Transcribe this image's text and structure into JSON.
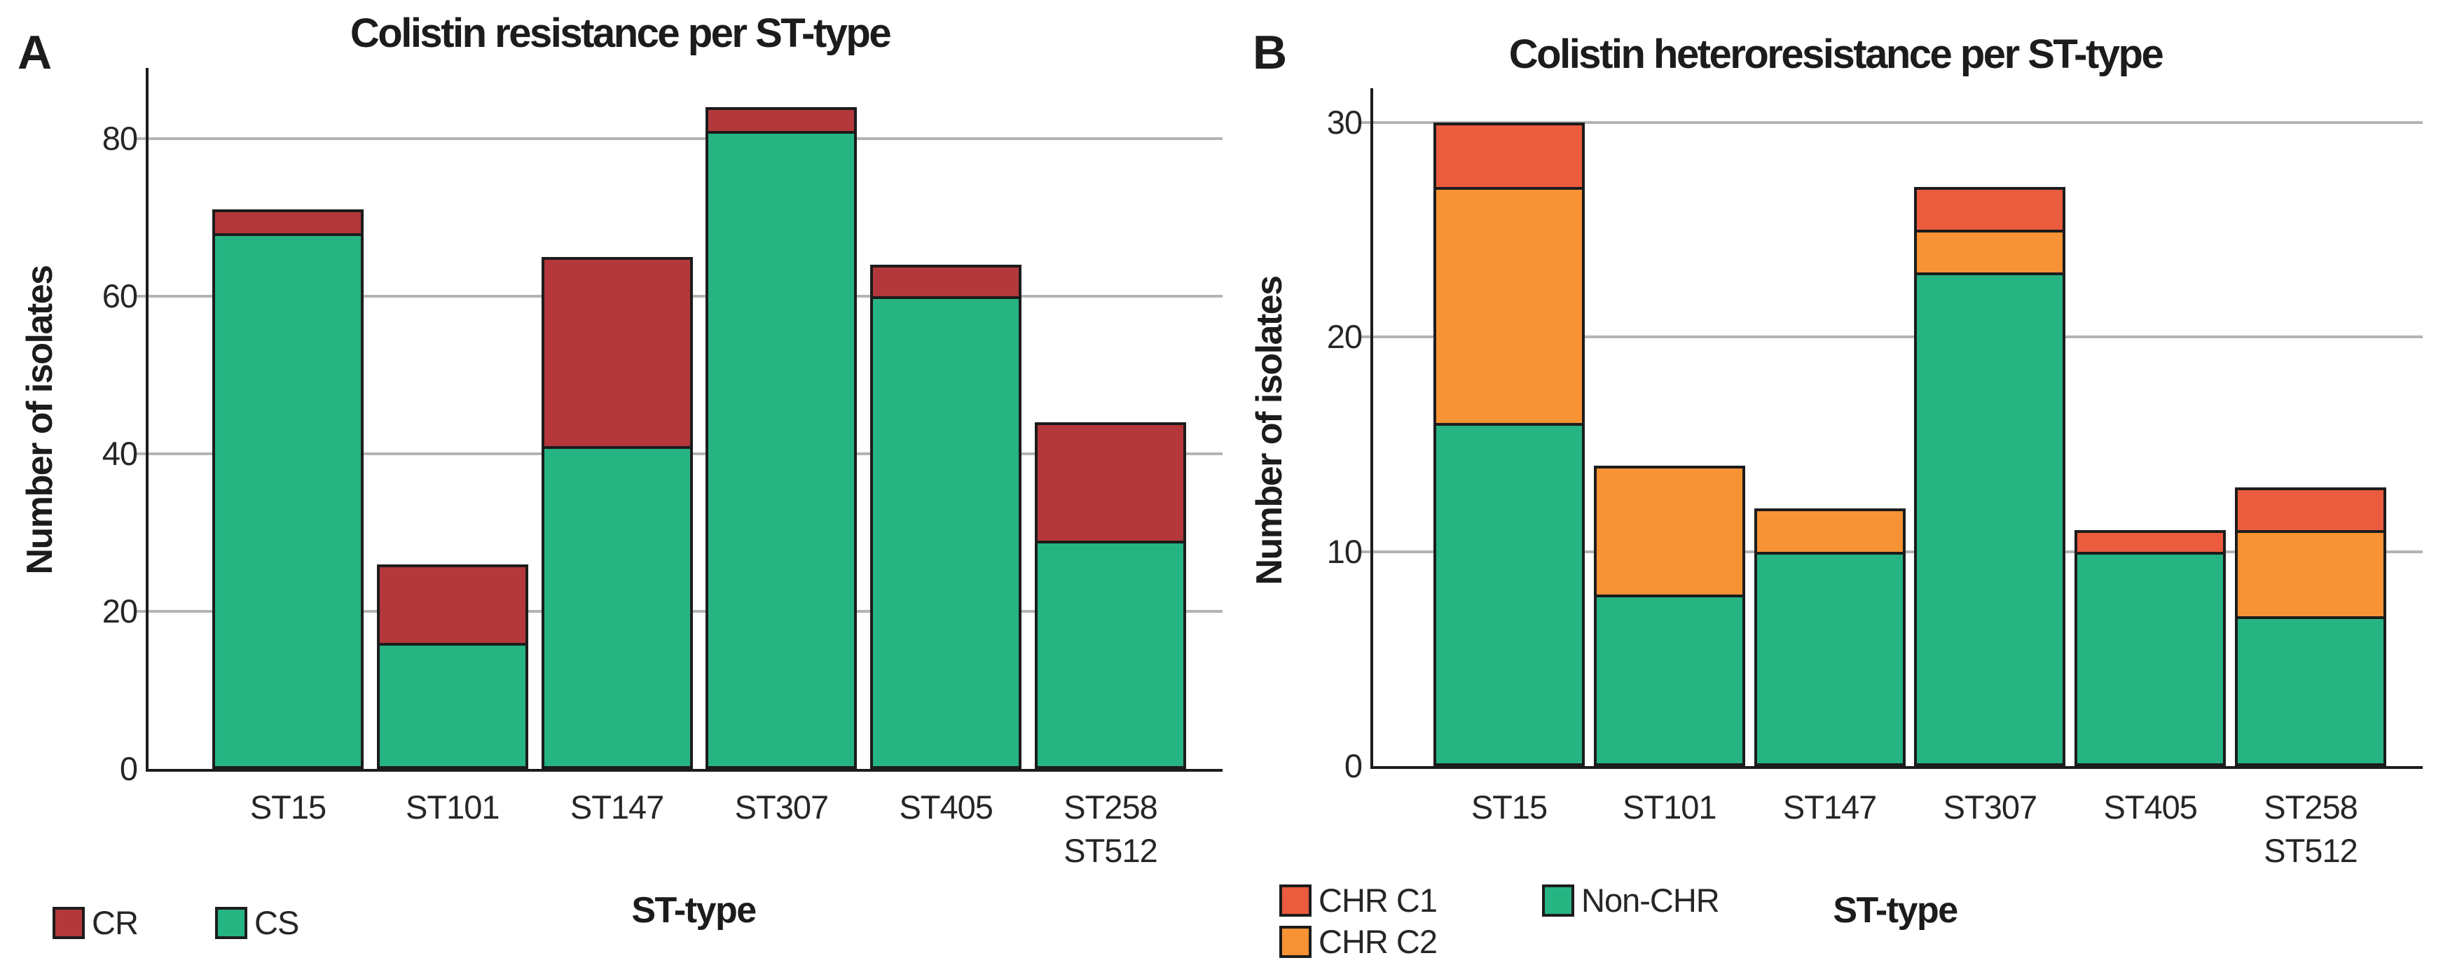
{
  "figure": {
    "background": "#ffffff",
    "grid_color": "#b4b4b4",
    "axis_color": "#1c1c1c",
    "panels": [
      {
        "panel_label": "A",
        "title": "Colistin resistance per ST-type",
        "y_axis_label": "Number of isolates",
        "x_axis_label": "ST-type",
        "legend": [
          {
            "label": "CR",
            "color": "#b4383b"
          },
          {
            "label": "CS",
            "color": "#27b483"
          }
        ]
      },
      {
        "panel_label": "B",
        "title": "Colistin heteroresistance per ST-type",
        "y_axis_label": "Number of isolates",
        "x_axis_label": "ST-type",
        "legend": [
          {
            "label": "CHR C1",
            "color": "#eb5b3e"
          },
          {
            "label": "CHR C2",
            "color": "#f79334"
          },
          {
            "label": "Non-CHR",
            "color": "#27b483"
          }
        ]
      }
    ]
  },
  "chart_data": [
    {
      "type": "bar",
      "stacked": true,
      "title": "Colistin resistance per ST-type",
      "xlabel": "ST-type",
      "ylabel": "Number of isolates",
      "categories": [
        "ST15",
        "ST101",
        "ST147",
        "ST307",
        "ST405",
        "ST258\nST512"
      ],
      "series": [
        {
          "name": "CS",
          "color": "#27b483",
          "values": [
            68,
            16,
            41,
            81,
            60,
            29
          ]
        },
        {
          "name": "CR",
          "color": "#b4383b",
          "values": [
            3,
            10,
            24,
            3,
            4,
            15
          ]
        }
      ],
      "totals": [
        71,
        26,
        65,
        84,
        64,
        44
      ],
      "yticks": [
        0,
        20,
        40,
        60,
        80
      ],
      "ylim": [
        0,
        89
      ],
      "grid": "horizontal",
      "legend_position": "bottom-left",
      "legend_order": [
        "CR",
        "CS"
      ]
    },
    {
      "type": "bar",
      "stacked": true,
      "title": "Colistin heteroresistance per ST-type",
      "xlabel": "ST-type",
      "ylabel": "Number of isolates",
      "categories": [
        "ST15",
        "ST101",
        "ST147",
        "ST307",
        "ST405",
        "ST258\nST512"
      ],
      "series": [
        {
          "name": "Non-CHR",
          "color": "#27b483",
          "values": [
            16,
            8,
            10,
            23,
            10,
            7
          ]
        },
        {
          "name": "CHR C2",
          "color": "#f79334",
          "values": [
            11,
            6,
            2,
            2,
            0,
            4
          ]
        },
        {
          "name": "CHR C1",
          "color": "#eb5b3e",
          "values": [
            3,
            0,
            0,
            2,
            1,
            2
          ]
        }
      ],
      "totals": [
        30,
        14,
        12,
        27,
        11,
        13
      ],
      "yticks": [
        0,
        10,
        20,
        30
      ],
      "ylim": [
        0,
        31.6
      ],
      "grid": "horizontal",
      "legend_position": "bottom-left",
      "legend_order": [
        "CHR C1",
        "CHR C2",
        "Non-CHR"
      ]
    }
  ]
}
